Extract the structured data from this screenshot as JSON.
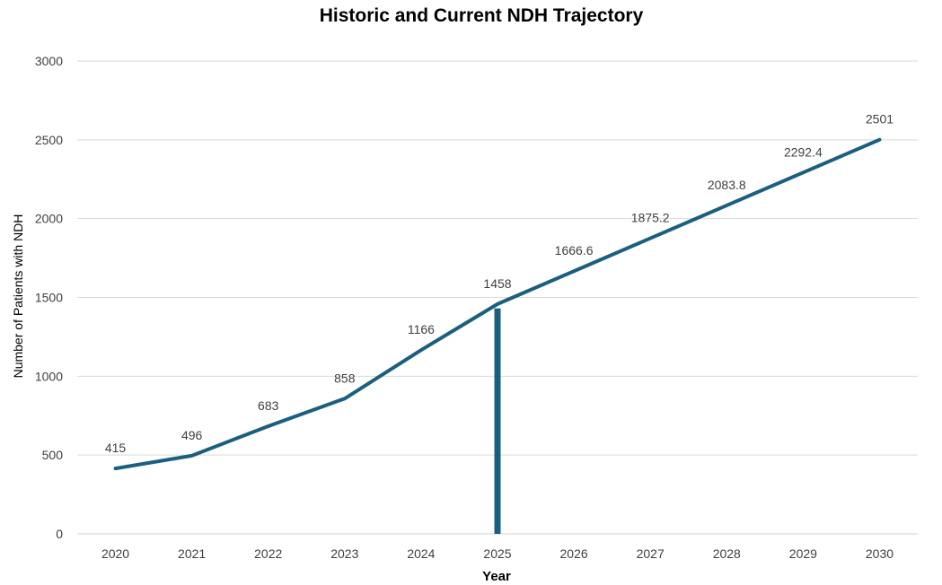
{
  "chart_data": {
    "type": "line",
    "title": "Historic and Current NDH Trajectory",
    "xlabel": "Year",
    "ylabel": "Number of Patients with NDH",
    "categories": [
      "2020",
      "2021",
      "2022",
      "2023",
      "2024",
      "2025",
      "2026",
      "2027",
      "2028",
      "2029",
      "2030"
    ],
    "series": [
      {
        "values": [
          415,
          496,
          683,
          858,
          1166,
          1458,
          1666.6,
          1875.2,
          2083.8,
          2292.4,
          2501
        ],
        "labels": [
          "415",
          "496",
          "683",
          "858",
          "1166",
          "1458",
          "1666.6",
          "1875.2",
          "2083.8",
          "2292.4",
          "2501"
        ],
        "color": "#1b5f7f"
      }
    ],
    "marker_line": {
      "category": "2025",
      "value": 1430,
      "color": "#1b5f7f"
    },
    "ylim": [
      0,
      3000
    ],
    "yticks": [
      "0",
      "500",
      "1000",
      "1500",
      "2000",
      "2500",
      "3000"
    ],
    "grid": true,
    "legend": "none"
  }
}
